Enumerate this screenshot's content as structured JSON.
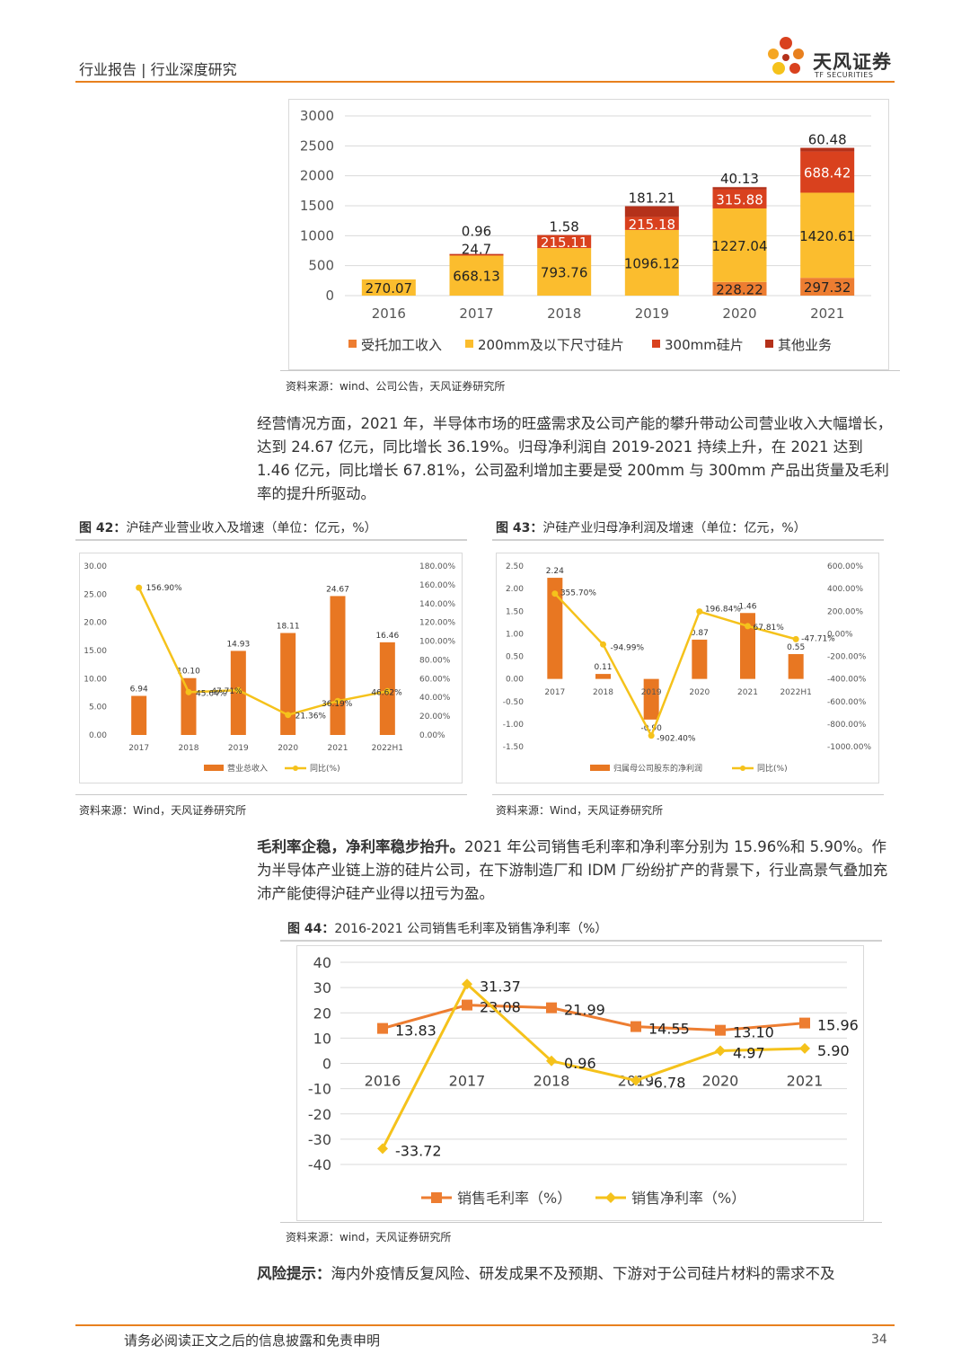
{
  "header": {
    "title": "行业报告 | 行业深度研究",
    "logo_name": "天风证券",
    "logo_sub": "TF SECURITIES",
    "accent": "#e8801e"
  },
  "chart_top": {
    "chart_data": {
      "type": "bar",
      "stacked": true,
      "categories": [
        "2016",
        "2017",
        "2018",
        "2019",
        "2020",
        "2021"
      ],
      "ylim": [
        0,
        3000
      ],
      "yticks": [
        "0",
        "500",
        "1000",
        "1500",
        "2000",
        "2500",
        "3000"
      ],
      "series": [
        {
          "name": "受托加工收入",
          "color": "#ed7d31",
          "values": [
            0,
            0,
            0,
            0,
            228.22,
            297.32
          ],
          "labels": [
            "",
            "",
            "",
            "",
            "228.22",
            "297.32"
          ]
        },
        {
          "name": "200mm及以下尺寸硅片",
          "color": "#fbbd2e",
          "values": [
            270.07,
            668.13,
            793.76,
            1096.12,
            1227.04,
            1420.61
          ],
          "labels": [
            "270.07",
            "668.13",
            "793.76",
            "1096.12",
            "1227.04",
            "1420.61"
          ]
        },
        {
          "name": "300mm硅片",
          "color": "#d9411e",
          "values": [
            0,
            24.7,
            215.11,
            215.18,
            315.88,
            688.42
          ],
          "labels": [
            "",
            "24.7",
            "215.11",
            "215.18",
            "315.88",
            "688.42"
          ]
        },
        {
          "name": "其他业务",
          "color": "#b4311a",
          "values": [
            0,
            0.96,
            1.58,
            181.21,
            40.13,
            60.48
          ],
          "labels": [
            "",
            "0.96",
            "1.58",
            "181.21",
            "40.13",
            "60.48"
          ]
        }
      ]
    },
    "source": "资料来源：wind、公司公告，天风证券研究所"
  },
  "paragraph1": "经营情况方面，2021 年，半导体市场的旺盛需求及公司产能的攀升带动公司营业收入大幅增长，达到 24.67 亿元，同比增长 36.19%。归母净利润自 2019-2021 持续上升，在 2021 达到 1.46 亿元，同比增长 67.81%，公司盈利增加主要是受 200mm 与 300mm 产品出货量及毛利率的提升所驱动。",
  "fig42": {
    "caption_num": "图 42：",
    "caption_text": "沪硅产业营业收入及增速（单位：亿元，%）",
    "chart_data": {
      "type": "bar",
      "categories": [
        "2017",
        "2018",
        "2019",
        "2020",
        "2021",
        "2022H1"
      ],
      "series": [
        {
          "name": "营业总收入",
          "type": "bar",
          "color": "#e87722",
          "values": [
            6.94,
            10.1,
            14.93,
            18.11,
            24.67,
            16.46
          ],
          "labels": [
            "6.94",
            "10.10",
            "14.93",
            "18.11",
            "24.67",
            "16.46"
          ]
        },
        {
          "name": "同比(%)",
          "type": "line",
          "color": "#f5c21b",
          "values": [
            156.9,
            45.64,
            47.71,
            21.36,
            36.19,
            46.62
          ],
          "labels": [
            "156.90%",
            "45.64%",
            "47.71%",
            "21.36%",
            "36.19%",
            "46.62%"
          ]
        }
      ],
      "ylim_left": [
        0,
        30
      ],
      "yticks_left": [
        "0.00",
        "5.00",
        "10.00",
        "15.00",
        "20.00",
        "25.00",
        "30.00"
      ],
      "ylim_right": [
        0,
        180
      ],
      "yticks_right": [
        "0.00%",
        "20.00%",
        "40.00%",
        "60.00%",
        "80.00%",
        "100.00%",
        "120.00%",
        "140.00%",
        "160.00%",
        "180.00%"
      ]
    },
    "source": "资料来源：Wind，天风证券研究所"
  },
  "fig43": {
    "caption_num": "图 43：",
    "caption_text": "沪硅产业归母净利润及增速（单位：亿元，%）",
    "chart_data": {
      "type": "bar",
      "categories": [
        "2017",
        "2018",
        "2019",
        "2020",
        "2021",
        "2022H1"
      ],
      "series": [
        {
          "name": "归属母公司股东的净利润",
          "type": "bar",
          "color": "#e87722",
          "values": [
            2.24,
            0.11,
            -0.9,
            0.87,
            1.46,
            0.55
          ],
          "labels": [
            "2.24",
            "0.11",
            "-0.90",
            "0.87",
            "1.46",
            "0.55"
          ]
        },
        {
          "name": "同比(%)",
          "type": "line",
          "color": "#f5c21b",
          "values": [
            355.7,
            -94.99,
            -902.4,
            196.84,
            67.81,
            -47.71
          ],
          "labels": [
            "355.70%",
            "-94.99%",
            "-902.40%",
            "196.84%",
            "67.81%",
            "-47.71%"
          ]
        }
      ],
      "ylim_left": [
        -1.5,
        2.5
      ],
      "yticks_left": [
        "-1.50",
        "-1.00",
        "-0.50",
        "0.00",
        "0.50",
        "1.00",
        "1.50",
        "2.00",
        "2.50"
      ],
      "ylim_right": [
        -1000,
        600
      ],
      "yticks_right": [
        "-1000.00%",
        "-800.00%",
        "-600.00%",
        "-400.00%",
        "-200.00%",
        "0.00%",
        "200.00%",
        "400.00%",
        "600.00%"
      ]
    },
    "source": "资料来源：Wind，天风证券研究所"
  },
  "paragraph2": {
    "bold": "毛利率企稳，净利率稳步抬升。",
    "text": "2021 年公司销售毛利率和净利率分别为 15.96%和 5.90%。作为半导体产业链上游的硅片公司，在下游制造厂和 IDM 厂纷纷扩产的背景下，行业高景气叠加充沛产能使得沪硅产业得以扭亏为盈。"
  },
  "fig44": {
    "caption_num": "图 44：",
    "caption_text": "2016-2021 公司销售毛利率及销售净利率（%）",
    "chart_data": {
      "type": "line",
      "categories": [
        "2016",
        "2017",
        "2018",
        "2019",
        "2020",
        "2021"
      ],
      "ylim": [
        -40,
        40
      ],
      "yticks": [
        "-40",
        "-30",
        "-20",
        "-10",
        "0",
        "10",
        "20",
        "30",
        "40"
      ],
      "series": [
        {
          "name": "销售毛利率（%）",
          "color": "#ed7d31",
          "marker": "square",
          "values": [
            13.83,
            23.08,
            21.99,
            14.55,
            13.1,
            15.96
          ],
          "labels": [
            "13.83",
            "23.08",
            "21.99",
            "14.55",
            "13.10",
            "15.96"
          ]
        },
        {
          "name": "销售净利率（%）",
          "color": "#f5c21b",
          "marker": "diamond",
          "values": [
            -33.72,
            31.37,
            0.96,
            -6.78,
            4.97,
            5.9
          ],
          "labels": [
            "-33.72",
            "31.37",
            "0.96",
            "-6.78",
            "4.97",
            "5.90"
          ]
        }
      ]
    },
    "source": "资料来源：wind，天风证券研究所"
  },
  "paragraph3": {
    "bold": "风险提示：",
    "text": "海内外疫情反复风险、研发成果不及预期、下游对于公司硅片材料的需求不及"
  },
  "footer": {
    "disclaimer": "请务必阅读正文之后的信息披露和免责申明",
    "page": "34"
  }
}
